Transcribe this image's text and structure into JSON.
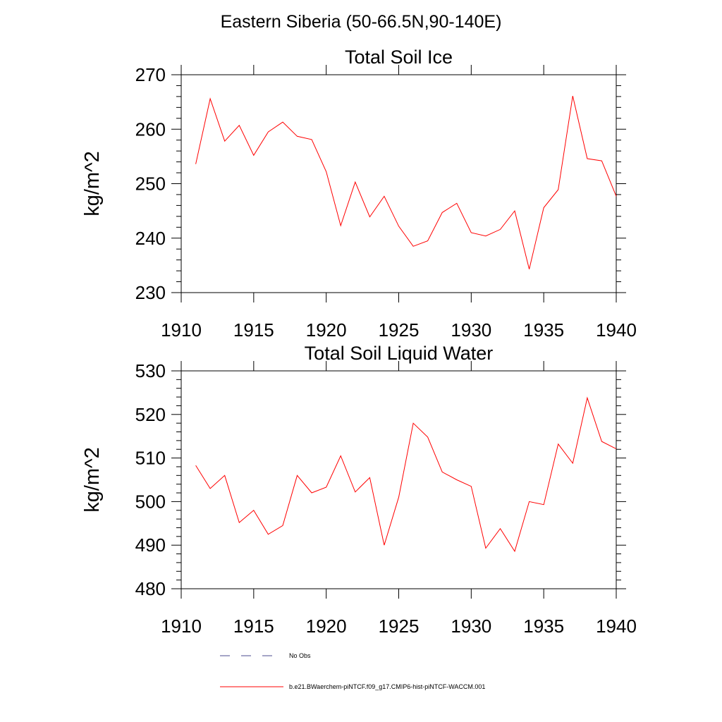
{
  "title": "Eastern Siberia (50-66.5N,90-140E)",
  "colors": {
    "series": "#ff0000",
    "no_obs": "#4b4b8f",
    "axis": "#000000"
  },
  "legend": {
    "no_obs_label": "No Obs",
    "model_label": "b.e21.BWaerchem-piNTCF.f09_g17.CMIP6-hist-piNTCF-WACCM.001"
  },
  "chart_data": [
    {
      "type": "line",
      "title": "Total Soil Ice",
      "xlabel": "",
      "ylabel": "kg/m^2",
      "xlim": [
        1910,
        1940
      ],
      "ylim": [
        230,
        270
      ],
      "xticks": [
        1910,
        1915,
        1920,
        1925,
        1930,
        1935,
        1940
      ],
      "yticks": [
        230,
        240,
        250,
        260,
        270
      ],
      "series": [
        {
          "x": [
            1911,
            1912,
            1913,
            1914,
            1915,
            1916,
            1917,
            1918,
            1919,
            1920,
            1921,
            1922,
            1923,
            1924,
            1925,
            1926,
            1927,
            1928,
            1929,
            1930,
            1931,
            1932,
            1933,
            1934,
            1935,
            1936,
            1937,
            1938,
            1939,
            1940
          ],
          "values": [
            253.6,
            265.6,
            257.8,
            260.7,
            255.2,
            259.5,
            261.3,
            258.7,
            258.1,
            252.2,
            242.3,
            250.3,
            243.9,
            247.7,
            242.2,
            238.5,
            239.5,
            244.7,
            246.4,
            241.0,
            240.4,
            241.6,
            245.0,
            234.3,
            245.6,
            248.9,
            266.1,
            254.6,
            254.2,
            247.7
          ]
        }
      ]
    },
    {
      "type": "line",
      "title": "Total Soil Liquid Water",
      "xlabel": "",
      "ylabel": "kg/m^2",
      "xlim": [
        1910,
        1940
      ],
      "ylim": [
        480,
        530
      ],
      "xticks": [
        1910,
        1915,
        1920,
        1925,
        1930,
        1935,
        1940
      ],
      "yticks": [
        480,
        490,
        500,
        510,
        520,
        530
      ],
      "series": [
        {
          "x": [
            1911,
            1912,
            1913,
            1914,
            1915,
            1916,
            1917,
            1918,
            1919,
            1920,
            1921,
            1922,
            1923,
            1924,
            1925,
            1926,
            1927,
            1928,
            1929,
            1930,
            1931,
            1932,
            1933,
            1934,
            1935,
            1936,
            1937,
            1938,
            1939,
            1940
          ],
          "values": [
            508.3,
            503.0,
            506.0,
            495.2,
            498.0,
            492.5,
            494.5,
            506.0,
            502.0,
            503.3,
            510.5,
            502.2,
            505.5,
            490.0,
            501.0,
            518.0,
            514.8,
            506.8,
            505.0,
            503.5,
            489.3,
            493.8,
            488.6,
            500.0,
            499.3,
            513.2,
            508.8,
            523.8,
            513.8,
            512.1
          ]
        }
      ]
    }
  ]
}
